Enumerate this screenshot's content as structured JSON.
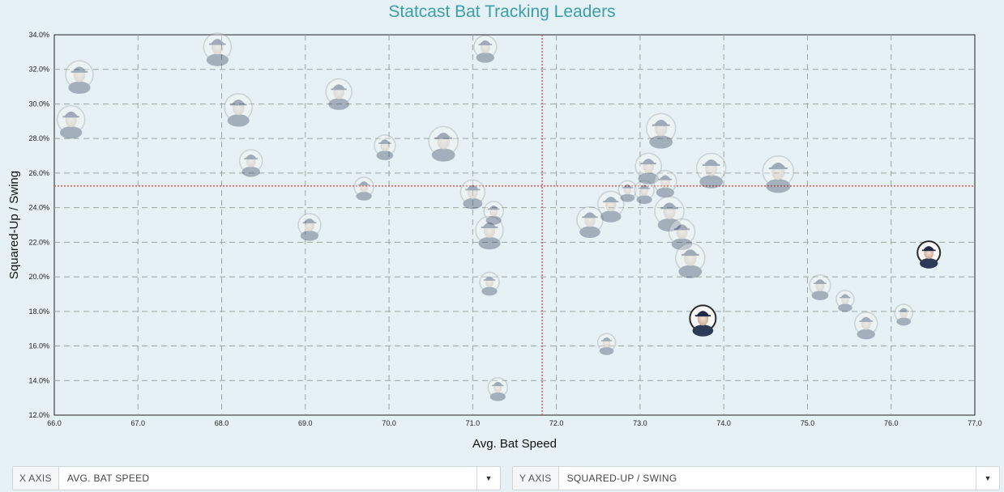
{
  "chart_data": {
    "type": "scatter",
    "title": "Statcast Bat Tracking Leaders",
    "xlabel": "Avg. Bat Speed",
    "ylabel": "Squared-Up / Swing",
    "xlim": [
      66.0,
      77.0
    ],
    "ylim": [
      12.0,
      34.0
    ],
    "x_ticks": [
      "66.0",
      "67.0",
      "68.0",
      "69.0",
      "70.0",
      "71.0",
      "72.0",
      "73.0",
      "74.0",
      "75.0",
      "76.0",
      "77.0"
    ],
    "y_ticks": [
      "12.0%",
      "14.0%",
      "16.0%",
      "18.0%",
      "20.0%",
      "22.0%",
      "24.0%",
      "26.0%",
      "28.0%",
      "30.0%",
      "32.0%",
      "34.0%"
    ],
    "grid": true,
    "reference_lines": {
      "x": 71.83,
      "y": 25.25,
      "color": "#e05050"
    },
    "points": [
      {
        "x": 66.3,
        "y": 31.7,
        "size": 17,
        "highlight": false
      },
      {
        "x": 66.2,
        "y": 29.1,
        "size": 17,
        "highlight": false
      },
      {
        "x": 67.95,
        "y": 33.3,
        "size": 17,
        "highlight": false
      },
      {
        "x": 68.2,
        "y": 29.8,
        "size": 17,
        "highlight": false
      },
      {
        "x": 68.35,
        "y": 26.7,
        "size": 14,
        "highlight": false
      },
      {
        "x": 69.05,
        "y": 23.0,
        "size": 14,
        "highlight": false
      },
      {
        "x": 69.4,
        "y": 30.7,
        "size": 16,
        "highlight": false
      },
      {
        "x": 69.7,
        "y": 25.2,
        "size": 12,
        "highlight": false
      },
      {
        "x": 69.95,
        "y": 27.6,
        "size": 13,
        "highlight": false
      },
      {
        "x": 70.65,
        "y": 27.85,
        "size": 18,
        "highlight": false
      },
      {
        "x": 71.0,
        "y": 24.9,
        "size": 15,
        "highlight": false
      },
      {
        "x": 71.15,
        "y": 33.3,
        "size": 14,
        "highlight": false
      },
      {
        "x": 71.2,
        "y": 22.7,
        "size": 17,
        "highlight": false
      },
      {
        "x": 71.25,
        "y": 23.8,
        "size": 12,
        "highlight": false
      },
      {
        "x": 71.2,
        "y": 19.7,
        "size": 12,
        "highlight": false
      },
      {
        "x": 71.3,
        "y": 13.6,
        "size": 12,
        "highlight": false
      },
      {
        "x": 72.4,
        "y": 23.3,
        "size": 16,
        "highlight": false
      },
      {
        "x": 72.65,
        "y": 24.2,
        "size": 16,
        "highlight": false
      },
      {
        "x": 72.6,
        "y": 16.2,
        "size": 11,
        "highlight": false
      },
      {
        "x": 72.85,
        "y": 25.05,
        "size": 11,
        "highlight": false
      },
      {
        "x": 73.05,
        "y": 25.0,
        "size": 12,
        "highlight": false
      },
      {
        "x": 73.1,
        "y": 26.4,
        "size": 16,
        "highlight": false
      },
      {
        "x": 73.25,
        "y": 28.6,
        "size": 18,
        "highlight": false
      },
      {
        "x": 73.3,
        "y": 25.5,
        "size": 14,
        "highlight": false
      },
      {
        "x": 73.35,
        "y": 23.8,
        "size": 18,
        "highlight": false
      },
      {
        "x": 73.5,
        "y": 22.6,
        "size": 16,
        "highlight": false
      },
      {
        "x": 73.6,
        "y": 21.1,
        "size": 18,
        "highlight": false
      },
      {
        "x": 73.75,
        "y": 17.6,
        "size": 16,
        "highlight": true
      },
      {
        "x": 73.85,
        "y": 26.3,
        "size": 18,
        "highlight": false
      },
      {
        "x": 74.65,
        "y": 26.1,
        "size": 19,
        "highlight": false
      },
      {
        "x": 75.15,
        "y": 19.5,
        "size": 13,
        "highlight": false
      },
      {
        "x": 75.45,
        "y": 18.7,
        "size": 11,
        "highlight": false
      },
      {
        "x": 75.7,
        "y": 17.3,
        "size": 14,
        "highlight": false
      },
      {
        "x": 76.15,
        "y": 17.9,
        "size": 11,
        "highlight": false
      },
      {
        "x": 76.45,
        "y": 21.4,
        "size": 14,
        "highlight": true
      }
    ]
  },
  "controls": {
    "x_axis": {
      "label": "X AXIS",
      "value": "AVG. BAT SPEED",
      "caret": "▼"
    },
    "y_axis": {
      "label": "Y AXIS",
      "value": "SQUARED-UP / SWING",
      "caret": "▼"
    }
  },
  "icons": {
    "caret": "chevron-down-icon",
    "player": "player-headshot-icon"
  }
}
